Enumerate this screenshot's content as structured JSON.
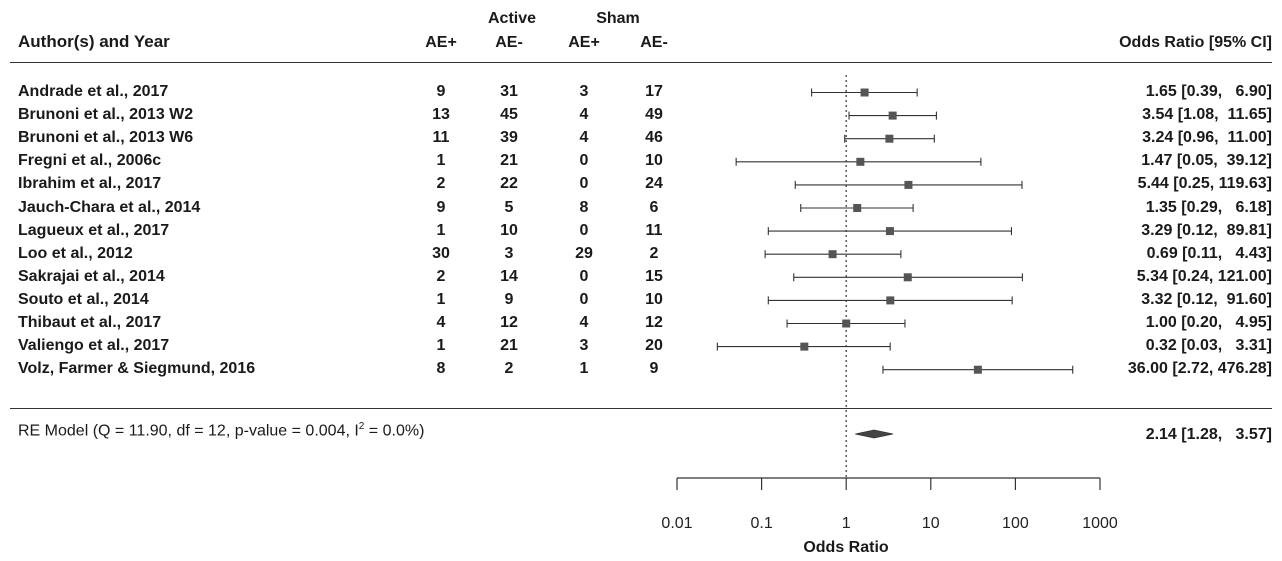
{
  "headers": {
    "study": "Author(s) and Year",
    "active": "Active",
    "sham": "Sham",
    "ae_pos": "AE+",
    "ae_neg": "AE-",
    "or_ci": "Odds Ratio [95% CI]"
  },
  "chart_data": {
    "type": "forest",
    "xscale": "log",
    "xlim": [
      0.01,
      1000
    ],
    "reference_line": 1,
    "xlabel": "Odds Ratio",
    "ticks": [
      0.01,
      0.1,
      1,
      10,
      100,
      1000
    ],
    "tick_labels": [
      "0.01",
      "0.1",
      "1",
      "10",
      "100",
      "1000"
    ],
    "studies": [
      {
        "name": "Andrade et al., 2017",
        "active_ae_pos": 9,
        "active_ae_neg": 31,
        "sham_ae_pos": 3,
        "sham_ae_neg": 17,
        "or": 1.65,
        "lo": 0.39,
        "hi": 6.9,
        "label": "1.65 [0.39,   6.90]"
      },
      {
        "name": "Brunoni et al., 2013 W2",
        "active_ae_pos": 13,
        "active_ae_neg": 45,
        "sham_ae_pos": 4,
        "sham_ae_neg": 49,
        "or": 3.54,
        "lo": 1.08,
        "hi": 11.65,
        "label": "3.54 [1.08,  11.65]"
      },
      {
        "name": "Brunoni et al., 2013 W6",
        "active_ae_pos": 11,
        "active_ae_neg": 39,
        "sham_ae_pos": 4,
        "sham_ae_neg": 46,
        "or": 3.24,
        "lo": 0.96,
        "hi": 11.0,
        "label": "3.24 [0.96,  11.00]"
      },
      {
        "name": "Fregni et al., 2006c",
        "active_ae_pos": 1,
        "active_ae_neg": 21,
        "sham_ae_pos": 0,
        "sham_ae_neg": 10,
        "or": 1.47,
        "lo": 0.05,
        "hi": 39.12,
        "label": "1.47 [0.05,  39.12]"
      },
      {
        "name": "Ibrahim et al., 2017",
        "active_ae_pos": 2,
        "active_ae_neg": 22,
        "sham_ae_pos": 0,
        "sham_ae_neg": 24,
        "or": 5.44,
        "lo": 0.25,
        "hi": 119.63,
        "label": "5.44 [0.25, 119.63]"
      },
      {
        "name": "Jauch-Chara et al., 2014",
        "active_ae_pos": 9,
        "active_ae_neg": 5,
        "sham_ae_pos": 8,
        "sham_ae_neg": 6,
        "or": 1.35,
        "lo": 0.29,
        "hi": 6.18,
        "label": "1.35 [0.29,   6.18]"
      },
      {
        "name": "Lagueux et al., 2017",
        "active_ae_pos": 1,
        "active_ae_neg": 10,
        "sham_ae_pos": 0,
        "sham_ae_neg": 11,
        "or": 3.29,
        "lo": 0.12,
        "hi": 89.81,
        "label": "3.29 [0.12,  89.81]"
      },
      {
        "name": "Loo et al., 2012",
        "active_ae_pos": 30,
        "active_ae_neg": 3,
        "sham_ae_pos": 29,
        "sham_ae_neg": 2,
        "or": 0.69,
        "lo": 0.11,
        "hi": 4.43,
        "label": "0.69 [0.11,   4.43]"
      },
      {
        "name": "Sakrajai et al., 2014",
        "active_ae_pos": 2,
        "active_ae_neg": 14,
        "sham_ae_pos": 0,
        "sham_ae_neg": 15,
        "or": 5.34,
        "lo": 0.24,
        "hi": 121.0,
        "label": "5.34 [0.24, 121.00]"
      },
      {
        "name": "Souto et al., 2014",
        "active_ae_pos": 1,
        "active_ae_neg": 9,
        "sham_ae_pos": 0,
        "sham_ae_neg": 10,
        "or": 3.32,
        "lo": 0.12,
        "hi": 91.6,
        "label": "3.32 [0.12,  91.60]"
      },
      {
        "name": "Thibaut et al., 2017",
        "active_ae_pos": 4,
        "active_ae_neg": 12,
        "sham_ae_pos": 4,
        "sham_ae_neg": 12,
        "or": 1.0,
        "lo": 0.2,
        "hi": 4.95,
        "label": "1.00 [0.20,   4.95]"
      },
      {
        "name": "Valiengo et al., 2017",
        "active_ae_pos": 1,
        "active_ae_neg": 21,
        "sham_ae_pos": 3,
        "sham_ae_neg": 20,
        "or": 0.32,
        "lo": 0.03,
        "hi": 3.31,
        "label": "0.32 [0.03,   3.31]"
      },
      {
        "name": "Volz, Farmer & Siegmund, 2016",
        "active_ae_pos": 8,
        "active_ae_neg": 2,
        "sham_ae_pos": 1,
        "sham_ae_neg": 9,
        "or": 36.0,
        "lo": 2.72,
        "hi": 476.28,
        "label": "36.00 [2.72, 476.28]"
      }
    ],
    "summary": {
      "name_prefix": "RE Model (Q = 11.90, df = 12, p-value = 0.004, I",
      "name_sup": "2",
      "name_suffix": " = 0.0%)",
      "or": 2.14,
      "lo": 1.28,
      "hi": 3.57,
      "label": "2.14 [1.28,   3.57]"
    }
  }
}
